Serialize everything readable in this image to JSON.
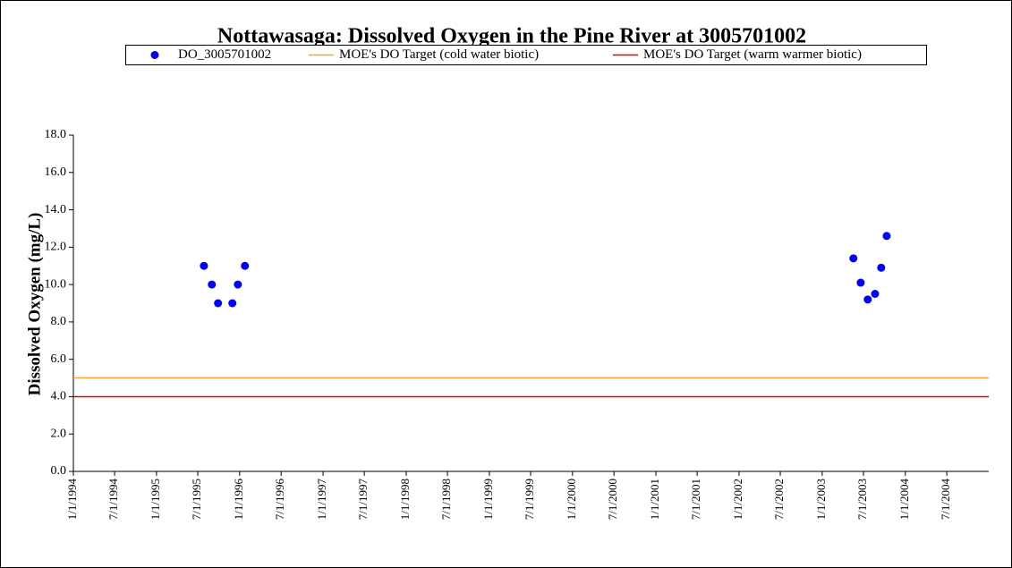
{
  "chart_data": {
    "type": "scatter",
    "title": "Nottawasaga: Dissolved Oxygen in the Pine River at 3005701002",
    "y_label": "Dissolved Oxygen (mg/L)",
    "xlim": [
      "1/1/1994",
      "1/1/2005"
    ],
    "xticks": [
      "1/1/1994",
      "7/1/1994",
      "1/1/1995",
      "7/1/1995",
      "1/1/1996",
      "7/1/1996",
      "1/1/1997",
      "7/1/1997",
      "1/1/1998",
      "7/1/1998",
      "1/1/1999",
      "7/1/1999",
      "1/1/2000",
      "7/1/2000",
      "1/1/2001",
      "7/1/2001",
      "1/1/2002",
      "7/1/2002",
      "1/1/2003",
      "7/1/2003",
      "1/1/2004",
      "7/1/2004"
    ],
    "ylim": [
      0,
      18
    ],
    "yticks": [
      {
        "value": 0,
        "label": "0.0"
      },
      {
        "value": 2,
        "label": "2.0"
      },
      {
        "value": 4,
        "label": "4.0"
      },
      {
        "value": 6,
        "label": "6.0"
      },
      {
        "value": 8,
        "label": "8.0"
      },
      {
        "value": 10,
        "label": "10.0"
      },
      {
        "value": 12,
        "label": "12.0"
      },
      {
        "value": 14,
        "label": "14.0"
      },
      {
        "value": 16,
        "label": "16.0"
      },
      {
        "value": 18,
        "label": "18.0"
      }
    ],
    "legend": "top",
    "series": [
      {
        "name": "DO_3005701002",
        "color": "#0000ff",
        "mode": "markers",
        "x": [
          "7/28/1995",
          "9/1/1995",
          "9/28/1995",
          "11/30/1995",
          "12/24/1995",
          "1/24/1996",
          "5/18/2003",
          "6/19/2003",
          "7/20/2003",
          "8/21/2003",
          "9/17/2003",
          "10/11/2003"
        ],
        "values": [
          11.0,
          10.0,
          9.0,
          9.0,
          10.0,
          11.0,
          11.4,
          10.1,
          9.2,
          9.5,
          10.9,
          12.6
        ]
      },
      {
        "name": "MOE's DO Target (cold water biotic)",
        "color": "#f4a341",
        "mode": "line",
        "x": [
          "1/1/1994",
          "1/1/2005"
        ],
        "values": [
          5,
          5
        ]
      },
      {
        "name": "MOE's DO Target (warm warmer biotic)",
        "color": "#e00000",
        "mode": "line",
        "x": [
          "1/1/1994",
          "1/1/2005"
        ],
        "values": [
          4,
          4
        ]
      }
    ]
  }
}
